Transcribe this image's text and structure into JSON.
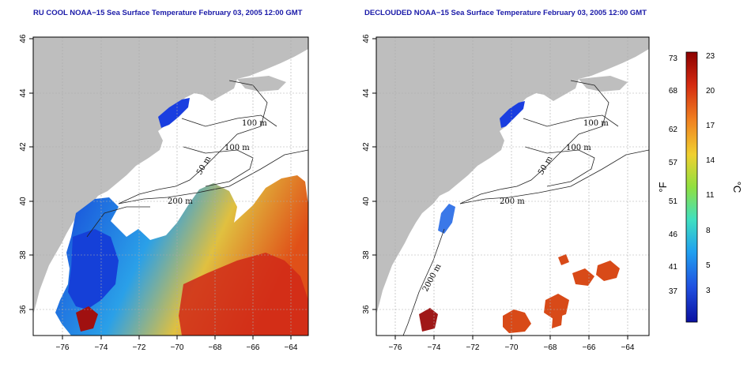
{
  "maps": [
    {
      "title": "RU COOL NOAA−15 Sea Surface Temperature February 03, 2005 12:00 GMT",
      "lat_ticks": [
        "46",
        "44",
        "42",
        "40",
        "38",
        "36"
      ],
      "lon_ticks": [
        "−76",
        "−74",
        "−72",
        "−70",
        "−68",
        "−66",
        "−64"
      ],
      "contour_labels": [
        "100 m",
        "100 m",
        "50 m",
        "200 m"
      ]
    },
    {
      "title": "DECLOUDED NOAA−15 Sea Surface Temperature February 03, 2005 12:00 GMT",
      "lat_ticks": [
        "46",
        "44",
        "42",
        "40",
        "38",
        "36"
      ],
      "lon_ticks": [
        "−76",
        "−74",
        "−72",
        "−70",
        "−68",
        "−66",
        "−64"
      ],
      "contour_labels": [
        "100 m",
        "100 m",
        "50 m",
        "200 m",
        "2000 m"
      ]
    }
  ],
  "colorbar": {
    "fahrenheit_label": "°F",
    "celsius_label": "°C",
    "fahrenheit_ticks": [
      "73",
      "68",
      "62",
      "57",
      "51",
      "46",
      "41",
      "37"
    ],
    "celsius_ticks": [
      "23",
      "20",
      "17",
      "14",
      "11",
      "8",
      "5",
      "3"
    ],
    "colors": [
      "#8b0000",
      "#d42a10",
      "#f08020",
      "#f0d030",
      "#90e040",
      "#40e0c0",
      "#20a0f0",
      "#2050e0",
      "#0a10a0"
    ]
  }
}
